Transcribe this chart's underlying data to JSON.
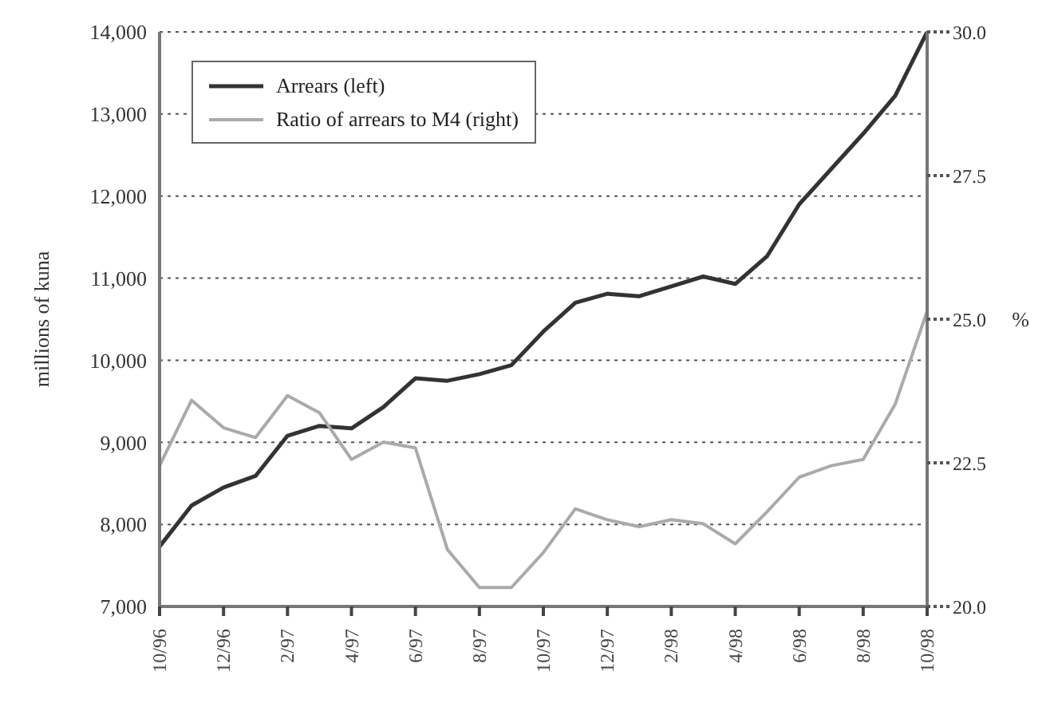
{
  "chart_data": {
    "type": "line",
    "ylabel": "millions of kuna",
    "y2label": "%",
    "categories": [
      "10/96",
      null,
      "12/96",
      null,
      "2/97",
      null,
      "4/97",
      null,
      "6/97",
      null,
      "8/97",
      null,
      "10/97",
      null,
      "12/97",
      null,
      "2/98",
      null,
      "4/98",
      null,
      "6/98",
      null,
      "8/98",
      null,
      "10/98"
    ],
    "series": [
      {
        "name": "Arrears (left)",
        "color": "#333333",
        "values": [
          7730,
          8230,
          8450,
          8590,
          9080,
          9200,
          9170,
          9430,
          9780,
          9750,
          9830,
          9940,
          10350,
          10700,
          10810,
          10780,
          10900,
          11020,
          10930,
          11270,
          11900,
          12330,
          12760,
          13220,
          14000
        ]
      },
      {
        "name": "Ratio of arrears to M4 (right)",
        "color": "#aaaaaa",
        "axis": "y2",
        "values": [
          22.45,
          23.59,
          23.11,
          22.94,
          23.67,
          23.37,
          22.56,
          22.86,
          22.76,
          20.99,
          20.33,
          20.33,
          20.94,
          21.7,
          21.51,
          21.39,
          21.51,
          21.44,
          21.09,
          21.65,
          22.25,
          22.45,
          22.56,
          23.52,
          25.14
        ]
      }
    ],
    "ylim": [
      7000,
      14000
    ],
    "yticks": [
      {
        "value": 7000,
        "label": "7,000"
      },
      {
        "value": 8000,
        "label": "8,000"
      },
      {
        "value": 9000,
        "label": "9,000"
      },
      {
        "value": 10000,
        "label": "10,000"
      },
      {
        "value": 11000,
        "label": "11,000"
      },
      {
        "value": 12000,
        "label": "12,000"
      },
      {
        "value": 13000,
        "label": "13,000"
      },
      {
        "value": 14000,
        "label": "14,000"
      }
    ],
    "y2lim": [
      20,
      30
    ],
    "y2ticks": [
      {
        "value": 20,
        "label": "20.0"
      },
      {
        "value": 22.5,
        "label": "22.5"
      },
      {
        "value": 25,
        "label": "25.0"
      },
      {
        "value": 27.5,
        "label": "27.5"
      },
      {
        "value": 30,
        "label": "30.0"
      }
    ],
    "grid": "y",
    "legend": "top left",
    "marker": "none",
    "line_style": "solid"
  }
}
